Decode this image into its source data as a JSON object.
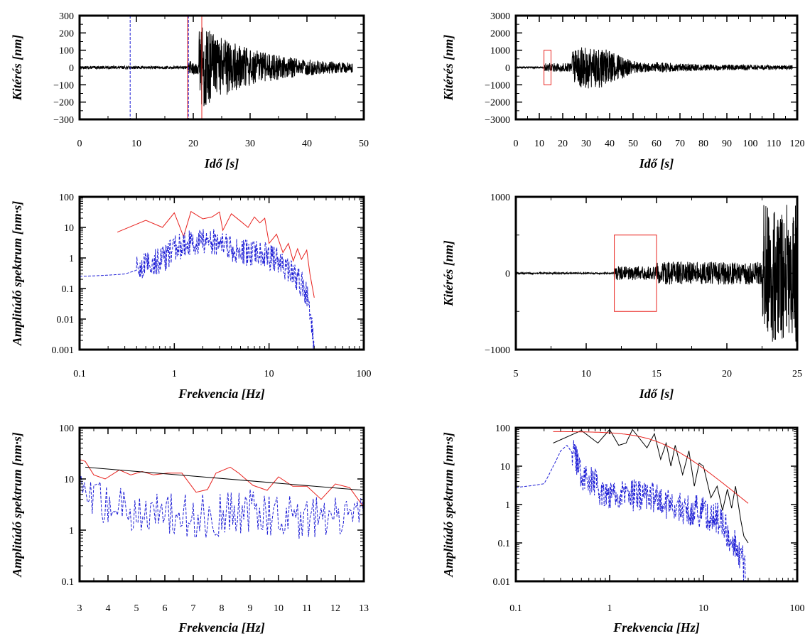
{
  "colors": {
    "frame": "#000000",
    "red": "#e8231f",
    "blue": "#1f1fd6",
    "black": "#000000"
  },
  "chart_data": [
    {
      "id": "p1",
      "type": "line",
      "xlabel": "Idő [s]",
      "ylabel": "Kitérés [nm]",
      "xlim": [
        0,
        50
      ],
      "ylim": [
        -300,
        300
      ],
      "xticks": [
        0,
        10,
        20,
        30,
        40,
        50
      ],
      "yticks": [
        -300,
        -200,
        -100,
        0,
        100,
        200,
        300
      ],
      "yticklabels": [
        "−300",
        "−200",
        "−100",
        "0",
        "100",
        "200",
        "300"
      ],
      "vlines": [
        {
          "x": 8.9,
          "color": "blue",
          "dash": true
        },
        {
          "x": 19.0,
          "color": "red",
          "dash": false
        },
        {
          "x": 19.15,
          "color": "blue",
          "dash": true
        },
        {
          "x": 21.5,
          "color": "red",
          "dash": false
        }
      ],
      "series": [
        {
          "color": "black",
          "kind": "seismogram",
          "segments": [
            [
              0,
              8,
              0.7,
              19
            ],
            [
              19,
              30,
              19.2,
              7
            ],
            [
              220,
              55,
              21.5,
              9.5
            ]
          ],
          "t_end": 48
        }
      ]
    },
    {
      "id": "p2",
      "type": "line",
      "xlabel": "Idő [s]",
      "ylabel": "Kitérés [nm]",
      "xlim": [
        0,
        120
      ],
      "ylim": [
        -3000,
        3000
      ],
      "xticks": [
        0,
        10,
        20,
        30,
        40,
        50,
        60,
        70,
        80,
        90,
        100,
        110,
        120
      ],
      "yticks": [
        -3000,
        -2000,
        -1000,
        0,
        1000,
        2000,
        3000
      ],
      "yticklabels": [
        "−3000",
        "−2000",
        "−1000",
        "0",
        "1000",
        "2000",
        "3000"
      ],
      "rects": [
        {
          "x0": 12,
          "x1": 15,
          "y0": -1000,
          "y1": 1000,
          "color": "red"
        }
      ],
      "series": [
        {
          "color": "black",
          "kind": "seismogram",
          "segments": [
            [
              0,
              40,
              0,
              29
            ],
            [
              12,
              250,
              15,
              12
            ],
            [
              24,
              1050,
              30,
              30
            ]
          ],
          "t_end": 118
        }
      ]
    },
    {
      "id": "p3",
      "type": "line",
      "xscale": "log",
      "yscale": "log",
      "xlabel": "Frekvencia [Hz]",
      "ylabel": "Amplitúdó spektrum [nm·s]",
      "xlim": [
        0.1,
        100
      ],
      "ylim": [
        0.001,
        100
      ],
      "xticks": [
        0.1,
        1,
        10,
        100
      ],
      "xticklabels": [
        "0.1",
        "1",
        "10",
        "100"
      ],
      "yticks": [
        0.001,
        0.01,
        0.1,
        1,
        10,
        100
      ],
      "yticklabels": [
        "0.001",
        "0.01",
        "0.1",
        "1",
        "10",
        "100"
      ],
      "series": [
        {
          "color": "red",
          "dash": false,
          "x": [
            0.25,
            0.5,
            0.75,
            1.0,
            1.25,
            1.5,
            2.0,
            2.5,
            3.0,
            3.25,
            4.0,
            5.0,
            6.0,
            7.0,
            8.0,
            9.0,
            10.0,
            12.0,
            14.0,
            16.0,
            18.0,
            20.0,
            22.0,
            25.0,
            27.0,
            30.0
          ],
          "y": [
            7,
            17,
            10,
            30,
            5,
            33,
            19,
            22,
            32,
            8,
            28,
            16,
            10,
            22,
            14,
            20,
            3,
            6,
            1.5,
            3,
            0.8,
            2.0,
            0.9,
            1.8,
            0.3,
            0.05
          ]
        },
        {
          "color": "blue",
          "dash": true,
          "kind": "spectrum",
          "x": [
            0.1,
            0.3,
            0.4,
            0.5,
            0.6,
            0.8,
            1.0,
            1.3,
            2.0,
            3.0,
            5.0,
            8.0,
            10.0,
            15.0,
            20.0,
            25.0,
            28.0,
            30.0
          ],
          "y": [
            0.25,
            0.3,
            0.4,
            0.6,
            0.7,
            1.0,
            2.0,
            2.8,
            3.5,
            3.0,
            1.5,
            1.5,
            1.1,
            0.5,
            0.2,
            0.07,
            0.01,
            0.0011
          ]
        }
      ]
    },
    {
      "id": "p4",
      "type": "line",
      "xlabel": "Idő  [s]",
      "ylabel": "Kitérés [nm]",
      "xlim": [
        5,
        25
      ],
      "ylim": [
        -1000,
        1000
      ],
      "xticks": [
        5,
        10,
        15,
        20,
        25
      ],
      "yticks": [
        -1000,
        0,
        1000
      ],
      "yticklabels": [
        "−1000",
        "0",
        "1000"
      ],
      "rects": [
        {
          "x0": 12,
          "x1": 15,
          "y0": -500,
          "y1": 500,
          "color": "red"
        }
      ],
      "series": [
        {
          "color": "black",
          "kind": "seismogram",
          "segments": [
            [
              5,
              10,
              12,
              41
            ],
            [
              12,
              95,
              22.5,
              23
            ],
            [
              650,
              0,
              25,
              5
            ]
          ],
          "t_start": 5,
          "t_end": 25
        }
      ]
    },
    {
      "id": "p5",
      "type": "line",
      "yscale": "log",
      "xlabel": "Frekvencia [Hz]",
      "ylabel": "Amplitúdó spektrum [nm·s]",
      "xlim": [
        3,
        13
      ],
      "ylim": [
        0.1,
        100
      ],
      "xticks": [
        3,
        4,
        5,
        6,
        7,
        8,
        9,
        10,
        11,
        12,
        13
      ],
      "yticks": [
        0.1,
        1,
        10,
        100
      ],
      "yticklabels": [
        "0.1",
        "1",
        "10",
        "100"
      ],
      "series": [
        {
          "color": "red",
          "dash": false,
          "x": [
            3.0,
            3.2,
            3.5,
            3.9,
            4.4,
            4.8,
            5.2,
            5.6,
            6.1,
            6.6,
            7.1,
            7.5,
            7.8,
            8.3,
            8.6,
            9.1,
            9.6,
            10.0,
            10.5,
            11.0,
            11.5,
            12.0,
            12.5,
            13.0
          ],
          "y": [
            24,
            22,
            12,
            10,
            15,
            12,
            14,
            12,
            13,
            13,
            5.5,
            6.2,
            13,
            17,
            13,
            7.5,
            6.0,
            11,
            7.2,
            7.2,
            4.0,
            8.0,
            6.8,
            2.8
          ]
        },
        {
          "color": "black",
          "dash": false,
          "x": [
            3.2,
            13.0
          ],
          "y": [
            17,
            6.0
          ]
        },
        {
          "color": "blue",
          "dash": true,
          "kind": "spectrum",
          "x": [
            3,
            4,
            5,
            6,
            7,
            8,
            9,
            10,
            11,
            12,
            13
          ],
          "y": [
            5,
            3.0,
            2.4,
            2.3,
            1.8,
            2.0,
            2.5,
            2.0,
            1.7,
            1.6,
            1.7
          ]
        }
      ]
    },
    {
      "id": "p6",
      "type": "line",
      "xscale": "log",
      "yscale": "log",
      "xlabel": "Frekvencia [Hz]",
      "ylabel": "Amplitúdó spektrum [nm·s]",
      "xlim": [
        0.1,
        100
      ],
      "ylim": [
        0.01,
        100
      ],
      "xticks": [
        0.1,
        1,
        10,
        100
      ],
      "xticklabels": [
        "0.1",
        "1",
        "10",
        "100"
      ],
      "yticks": [
        0.01,
        0.1,
        1,
        10,
        100
      ],
      "yticklabels": [
        "0.01",
        "0.1",
        "1",
        "10",
        "100"
      ],
      "series": [
        {
          "color": "black",
          "dash": false,
          "x": [
            0.25,
            0.5,
            0.75,
            1.0,
            1.25,
            1.5,
            1.75,
            2.0,
            2.5,
            3.0,
            3.5,
            4.0,
            4.5,
            5.0,
            6.0,
            7.0,
            8.0,
            9.0,
            10.0,
            12.0,
            14.0,
            16.0,
            18.0,
            20.0,
            22.0,
            25.0,
            27.0,
            30.0
          ],
          "y": [
            40,
            85,
            40,
            90,
            35,
            40,
            90,
            60,
            30,
            70,
            15,
            40,
            10,
            35,
            6,
            25,
            3,
            12,
            10,
            1.5,
            3,
            0.7,
            2.5,
            0.8,
            3,
            0.4,
            0.15,
            0.1
          ]
        },
        {
          "color": "red",
          "dash": false,
          "kind": "model",
          "model": {
            "omega0": 80,
            "fc": 3.5,
            "f_from": 0.25,
            "f_to": 30
          }
        },
        {
          "color": "blue",
          "dash": true,
          "kind": "spectrum",
          "x": [
            0.1,
            0.2,
            0.25,
            0.3,
            0.35,
            0.4,
            0.5,
            0.6,
            0.8,
            1.0,
            1.5,
            2.0,
            3.0,
            4.0,
            6.0,
            10.0,
            15.0,
            20.0,
            25.0,
            28.0
          ],
          "y": [
            2.8,
            3.5,
            10,
            25,
            35,
            22,
            6,
            5,
            2.5,
            2.0,
            1.7,
            1.8,
            1.4,
            1.1,
            0.8,
            0.6,
            0.4,
            0.12,
            0.05,
            0.02
          ]
        }
      ]
    }
  ]
}
